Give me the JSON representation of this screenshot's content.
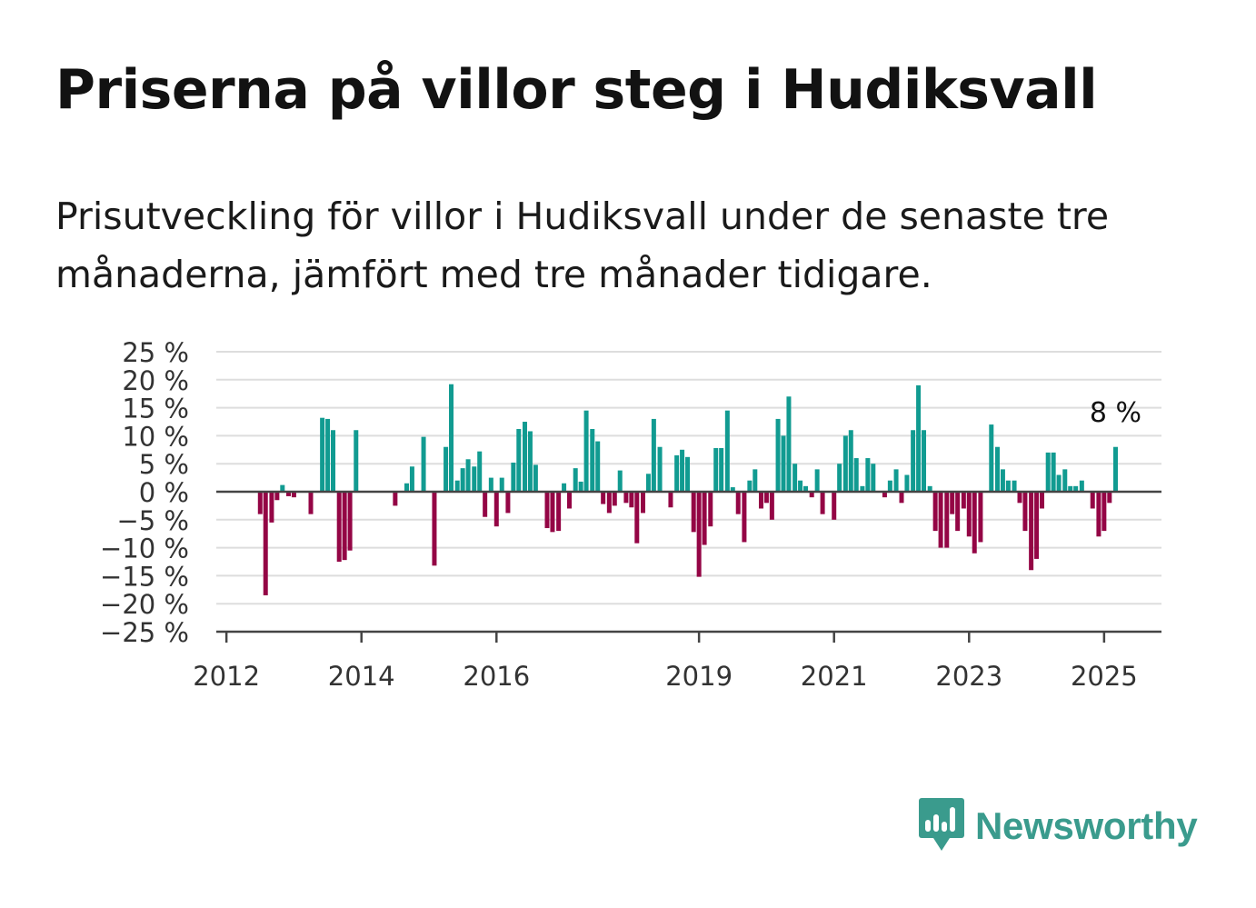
{
  "title": "Priserna på villor steg i Hudiksvall",
  "subtitle": "Prisutveckling för villor i Hudiksvall under de senaste tre månaderna, jämfört med tre månader tidigare.",
  "brand": {
    "name": "Newsworthy",
    "icon": "newsworthy-logo-icon",
    "color": "#3a9b8d"
  },
  "colors": {
    "positive": "#119b91",
    "negative": "#940545",
    "grid": "#dddddd",
    "axis": "#444444"
  },
  "chart_data": {
    "type": "bar",
    "title": "Priserna på villor steg i Hudiksvall",
    "xlabel": "",
    "ylabel": "",
    "ylim": [
      -25,
      25
    ],
    "yticks": [
      "25 %",
      "20 %",
      "15 %",
      "10 %",
      "5 %",
      "0 %",
      "−5 %",
      "−10 %",
      "−15 %",
      "−20 %",
      "−25 %"
    ],
    "ytick_values": [
      25,
      20,
      15,
      10,
      5,
      0,
      -5,
      -10,
      -15,
      -20,
      -25
    ],
    "xticks": [
      {
        "label": "2012",
        "x": 2012.0
      },
      {
        "label": "2014",
        "x": 2014.0
      },
      {
        "label": "2016",
        "x": 2016.0
      },
      {
        "label": "2019",
        "x": 2019.0
      },
      {
        "label": "2021",
        "x": 2021.0
      },
      {
        "label": "2023",
        "x": 2023.0
      },
      {
        "label": "2025",
        "x": 2025.0
      }
    ],
    "xlim": [
      2011.85,
      2025.85
    ],
    "annotation": {
      "text": "8 %",
      "x": 2025.17
    },
    "grid": true,
    "values": [
      {
        "x": 2012.5,
        "y": -4
      },
      {
        "x": 2012.58,
        "y": -18.5
      },
      {
        "x": 2012.67,
        "y": -5.5
      },
      {
        "x": 2012.75,
        "y": -1.5
      },
      {
        "x": 2012.83,
        "y": 1.2
      },
      {
        "x": 2012.92,
        "y": -0.8
      },
      {
        "x": 2013.0,
        "y": -1
      },
      {
        "x": 2013.25,
        "y": -4
      },
      {
        "x": 2013.42,
        "y": 13.2
      },
      {
        "x": 2013.5,
        "y": 13
      },
      {
        "x": 2013.58,
        "y": 11
      },
      {
        "x": 2013.67,
        "y": -12.5
      },
      {
        "x": 2013.75,
        "y": -12.2
      },
      {
        "x": 2013.83,
        "y": -10.5
      },
      {
        "x": 2013.92,
        "y": 11
      },
      {
        "x": 2014.5,
        "y": -2.5
      },
      {
        "x": 2014.67,
        "y": 1.5
      },
      {
        "x": 2014.75,
        "y": 4.5
      },
      {
        "x": 2014.92,
        "y": 9.8
      },
      {
        "x": 2015.08,
        "y": -13.2
      },
      {
        "x": 2015.25,
        "y": 8
      },
      {
        "x": 2015.33,
        "y": 19.2
      },
      {
        "x": 2015.42,
        "y": 2
      },
      {
        "x": 2015.5,
        "y": 4.2
      },
      {
        "x": 2015.58,
        "y": 5.8
      },
      {
        "x": 2015.67,
        "y": 4.5
      },
      {
        "x": 2015.75,
        "y": 7.2
      },
      {
        "x": 2015.83,
        "y": -4.5
      },
      {
        "x": 2015.92,
        "y": 2.5
      },
      {
        "x": 2016.0,
        "y": -6.2
      },
      {
        "x": 2016.08,
        "y": 2.5
      },
      {
        "x": 2016.17,
        "y": -3.8
      },
      {
        "x": 2016.25,
        "y": 5.2
      },
      {
        "x": 2016.33,
        "y": 11.2
      },
      {
        "x": 2016.42,
        "y": 12.5
      },
      {
        "x": 2016.5,
        "y": 10.8
      },
      {
        "x": 2016.58,
        "y": 4.8
      },
      {
        "x": 2016.75,
        "y": -6.5
      },
      {
        "x": 2016.83,
        "y": -7.2
      },
      {
        "x": 2016.92,
        "y": -7
      },
      {
        "x": 2017.0,
        "y": 1.5
      },
      {
        "x": 2017.08,
        "y": -3
      },
      {
        "x": 2017.17,
        "y": 4.2
      },
      {
        "x": 2017.25,
        "y": 1.8
      },
      {
        "x": 2017.33,
        "y": 14.5
      },
      {
        "x": 2017.42,
        "y": 11.2
      },
      {
        "x": 2017.5,
        "y": 9
      },
      {
        "x": 2017.58,
        "y": -2.2
      },
      {
        "x": 2017.67,
        "y": -3.8
      },
      {
        "x": 2017.75,
        "y": -2.5
      },
      {
        "x": 2017.83,
        "y": 3.8
      },
      {
        "x": 2017.92,
        "y": -2
      },
      {
        "x": 2018.0,
        "y": -2.8
      },
      {
        "x": 2018.08,
        "y": -9.2
      },
      {
        "x": 2018.17,
        "y": -3.8
      },
      {
        "x": 2018.25,
        "y": 3.2
      },
      {
        "x": 2018.33,
        "y": 13
      },
      {
        "x": 2018.42,
        "y": 8
      },
      {
        "x": 2018.58,
        "y": -2.8
      },
      {
        "x": 2018.67,
        "y": 6.5
      },
      {
        "x": 2018.75,
        "y": 7.5
      },
      {
        "x": 2018.83,
        "y": 6.2
      },
      {
        "x": 2018.92,
        "y": -7.2
      },
      {
        "x": 2019.0,
        "y": -15.2
      },
      {
        "x": 2019.08,
        "y": -9.5
      },
      {
        "x": 2019.17,
        "y": -6.2
      },
      {
        "x": 2019.25,
        "y": 7.8
      },
      {
        "x": 2019.33,
        "y": 7.8
      },
      {
        "x": 2019.42,
        "y": 14.5
      },
      {
        "x": 2019.5,
        "y": 0.8
      },
      {
        "x": 2019.58,
        "y": -4
      },
      {
        "x": 2019.67,
        "y": -9
      },
      {
        "x": 2019.75,
        "y": 2
      },
      {
        "x": 2019.83,
        "y": 4
      },
      {
        "x": 2019.92,
        "y": -3
      },
      {
        "x": 2020.0,
        "y": -2
      },
      {
        "x": 2020.08,
        "y": -5
      },
      {
        "x": 2020.17,
        "y": 13
      },
      {
        "x": 2020.25,
        "y": 10
      },
      {
        "x": 2020.33,
        "y": 17
      },
      {
        "x": 2020.42,
        "y": 5
      },
      {
        "x": 2020.5,
        "y": 2
      },
      {
        "x": 2020.58,
        "y": 1
      },
      {
        "x": 2020.67,
        "y": -1
      },
      {
        "x": 2020.75,
        "y": 4
      },
      {
        "x": 2020.83,
        "y": -4
      },
      {
        "x": 2021.0,
        "y": -5
      },
      {
        "x": 2021.08,
        "y": 5
      },
      {
        "x": 2021.17,
        "y": 10
      },
      {
        "x": 2021.25,
        "y": 11
      },
      {
        "x": 2021.33,
        "y": 6
      },
      {
        "x": 2021.42,
        "y": 1
      },
      {
        "x": 2021.5,
        "y": 6
      },
      {
        "x": 2021.58,
        "y": 5
      },
      {
        "x": 2021.75,
        "y": -1
      },
      {
        "x": 2021.83,
        "y": 2
      },
      {
        "x": 2021.92,
        "y": 4
      },
      {
        "x": 2022.0,
        "y": -2
      },
      {
        "x": 2022.08,
        "y": 3
      },
      {
        "x": 2022.17,
        "y": 11
      },
      {
        "x": 2022.25,
        "y": 19
      },
      {
        "x": 2022.33,
        "y": 11
      },
      {
        "x": 2022.42,
        "y": 1
      },
      {
        "x": 2022.5,
        "y": -7
      },
      {
        "x": 2022.58,
        "y": -10
      },
      {
        "x": 2022.67,
        "y": -10
      },
      {
        "x": 2022.75,
        "y": -4
      },
      {
        "x": 2022.83,
        "y": -7
      },
      {
        "x": 2022.92,
        "y": -3
      },
      {
        "x": 2023.0,
        "y": -8
      },
      {
        "x": 2023.08,
        "y": -11
      },
      {
        "x": 2023.17,
        "y": -9
      },
      {
        "x": 2023.33,
        "y": 12
      },
      {
        "x": 2023.42,
        "y": 8
      },
      {
        "x": 2023.5,
        "y": 4
      },
      {
        "x": 2023.58,
        "y": 2
      },
      {
        "x": 2023.67,
        "y": 2
      },
      {
        "x": 2023.75,
        "y": -2
      },
      {
        "x": 2023.83,
        "y": -7
      },
      {
        "x": 2023.92,
        "y": -14
      },
      {
        "x": 2024.0,
        "y": -12
      },
      {
        "x": 2024.08,
        "y": -3
      },
      {
        "x": 2024.17,
        "y": 7
      },
      {
        "x": 2024.25,
        "y": 7
      },
      {
        "x": 2024.33,
        "y": 3
      },
      {
        "x": 2024.42,
        "y": 4
      },
      {
        "x": 2024.5,
        "y": 1
      },
      {
        "x": 2024.58,
        "y": 1
      },
      {
        "x": 2024.67,
        "y": 2
      },
      {
        "x": 2024.83,
        "y": -3
      },
      {
        "x": 2024.92,
        "y": -8
      },
      {
        "x": 2025.0,
        "y": -7
      },
      {
        "x": 2025.08,
        "y": -2
      },
      {
        "x": 2025.17,
        "y": 8
      }
    ]
  }
}
